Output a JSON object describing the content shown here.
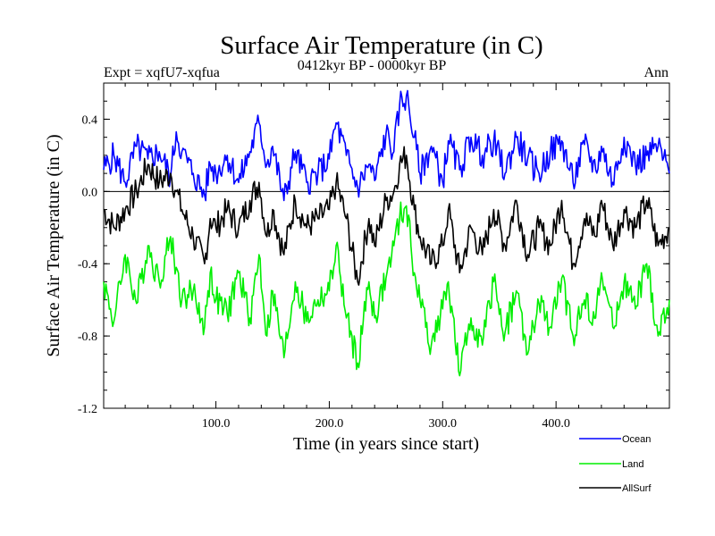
{
  "chart_data": {
    "type": "line",
    "title": "Surface Air Temperature (in C)",
    "subtitle": "0412kyr BP - 0000kyr BP",
    "left_label": "Expt = xqfU7-xqfua",
    "right_label": "Ann",
    "xlabel": "Time (in years since start)",
    "ylabel": "Surface Air Temperature (in C)",
    "xlim": [
      1,
      500
    ],
    "ylim": [
      -1.2,
      0.6
    ],
    "x_ticks": [
      100,
      200,
      300,
      400
    ],
    "x_tick_labels": [
      "100.0",
      "200.0",
      "300.0",
      "400.0"
    ],
    "y_ticks": [
      -1.2,
      -0.8,
      -0.4,
      0.0,
      0.4
    ],
    "y_tick_labels": [
      "-1.2",
      "-0.8",
      "-0.4",
      "0.0",
      "0.4"
    ],
    "zero_line": true,
    "legend_position": "bottom-right",
    "series": [
      {
        "name": "Ocean",
        "color": "#0000ff",
        "x": [
          1,
          10,
          20,
          30,
          40,
          50,
          60,
          65,
          70,
          80,
          90,
          95,
          100,
          110,
          120,
          130,
          138,
          145,
          150,
          160,
          170,
          180,
          190,
          200,
          206,
          215,
          225,
          235,
          240,
          250,
          257,
          262,
          268,
          275,
          280,
          290,
          300,
          305,
          315,
          325,
          335,
          345,
          355,
          365,
          375,
          385,
          395,
          405,
          415,
          425,
          435,
          440,
          450,
          460,
          470,
          480,
          490,
          500
        ],
        "values": [
          0.12,
          0.2,
          0.05,
          0.25,
          0.18,
          0.22,
          0.08,
          0.33,
          0.22,
          0.1,
          -0.02,
          0.15,
          0.1,
          0.2,
          0.05,
          0.22,
          0.38,
          0.15,
          0.25,
          -0.05,
          0.22,
          0.05,
          0.1,
          0.18,
          0.38,
          0.2,
          0.02,
          0.15,
          0.06,
          0.32,
          0.22,
          0.48,
          0.53,
          0.3,
          0.1,
          0.25,
          0.05,
          0.28,
          0.12,
          0.3,
          0.2,
          0.28,
          0.1,
          0.3,
          0.18,
          0.1,
          0.22,
          0.28,
          0.05,
          0.26,
          0.12,
          0.25,
          0.05,
          0.3,
          0.15,
          0.2,
          0.25,
          0.1
        ]
      },
      {
        "name": "Land",
        "color": "#00ee00",
        "x": [
          1,
          10,
          20,
          30,
          40,
          50,
          60,
          65,
          70,
          80,
          90,
          95,
          100,
          110,
          120,
          130,
          138,
          145,
          150,
          160,
          170,
          180,
          190,
          200,
          206,
          215,
          225,
          235,
          240,
          250,
          257,
          262,
          268,
          275,
          280,
          290,
          300,
          305,
          315,
          325,
          335,
          345,
          355,
          365,
          375,
          385,
          395,
          405,
          415,
          425,
          435,
          440,
          450,
          460,
          470,
          480,
          490,
          500
        ],
        "values": [
          -0.5,
          -0.72,
          -0.35,
          -0.62,
          -0.3,
          -0.5,
          -0.25,
          -0.42,
          -0.6,
          -0.55,
          -0.75,
          -0.45,
          -0.6,
          -0.68,
          -0.45,
          -0.7,
          -0.35,
          -0.8,
          -0.55,
          -0.92,
          -0.5,
          -0.72,
          -0.6,
          -0.55,
          -0.3,
          -0.7,
          -0.95,
          -0.5,
          -0.7,
          -0.48,
          -0.3,
          -0.15,
          -0.08,
          -0.45,
          -0.6,
          -0.85,
          -0.65,
          -0.5,
          -1.02,
          -0.7,
          -0.85,
          -0.5,
          -0.78,
          -0.55,
          -0.9,
          -0.62,
          -0.75,
          -0.48,
          -0.8,
          -0.6,
          -0.7,
          -0.45,
          -0.75,
          -0.5,
          -0.65,
          -0.4,
          -0.8,
          -0.6
        ]
      },
      {
        "name": "AllSurf",
        "color": "#000000",
        "x": [
          1,
          10,
          20,
          30,
          40,
          50,
          60,
          65,
          70,
          80,
          90,
          95,
          100,
          110,
          120,
          130,
          138,
          145,
          150,
          160,
          170,
          180,
          190,
          200,
          206,
          215,
          225,
          235,
          240,
          250,
          257,
          262,
          268,
          275,
          280,
          290,
          300,
          305,
          315,
          325,
          335,
          345,
          355,
          365,
          375,
          385,
          395,
          405,
          415,
          425,
          435,
          440,
          450,
          460,
          470,
          480,
          490,
          500
        ],
        "values": [
          -0.1,
          -0.2,
          -0.1,
          0.0,
          0.15,
          0.05,
          0.1,
          0.0,
          -0.1,
          -0.25,
          -0.4,
          -0.15,
          -0.2,
          -0.1,
          -0.2,
          -0.05,
          0.05,
          -0.25,
          -0.1,
          -0.35,
          -0.05,
          -0.2,
          -0.15,
          -0.1,
          0.05,
          -0.15,
          -0.5,
          -0.15,
          -0.3,
          -0.05,
          0.0,
          0.15,
          0.2,
          -0.1,
          -0.25,
          -0.4,
          -0.3,
          -0.1,
          -0.45,
          -0.2,
          -0.35,
          -0.1,
          -0.3,
          -0.05,
          -0.35,
          -0.2,
          -0.3,
          -0.05,
          -0.4,
          -0.15,
          -0.25,
          -0.05,
          -0.3,
          -0.1,
          -0.2,
          -0.05,
          -0.3,
          -0.2
        ]
      }
    ]
  }
}
